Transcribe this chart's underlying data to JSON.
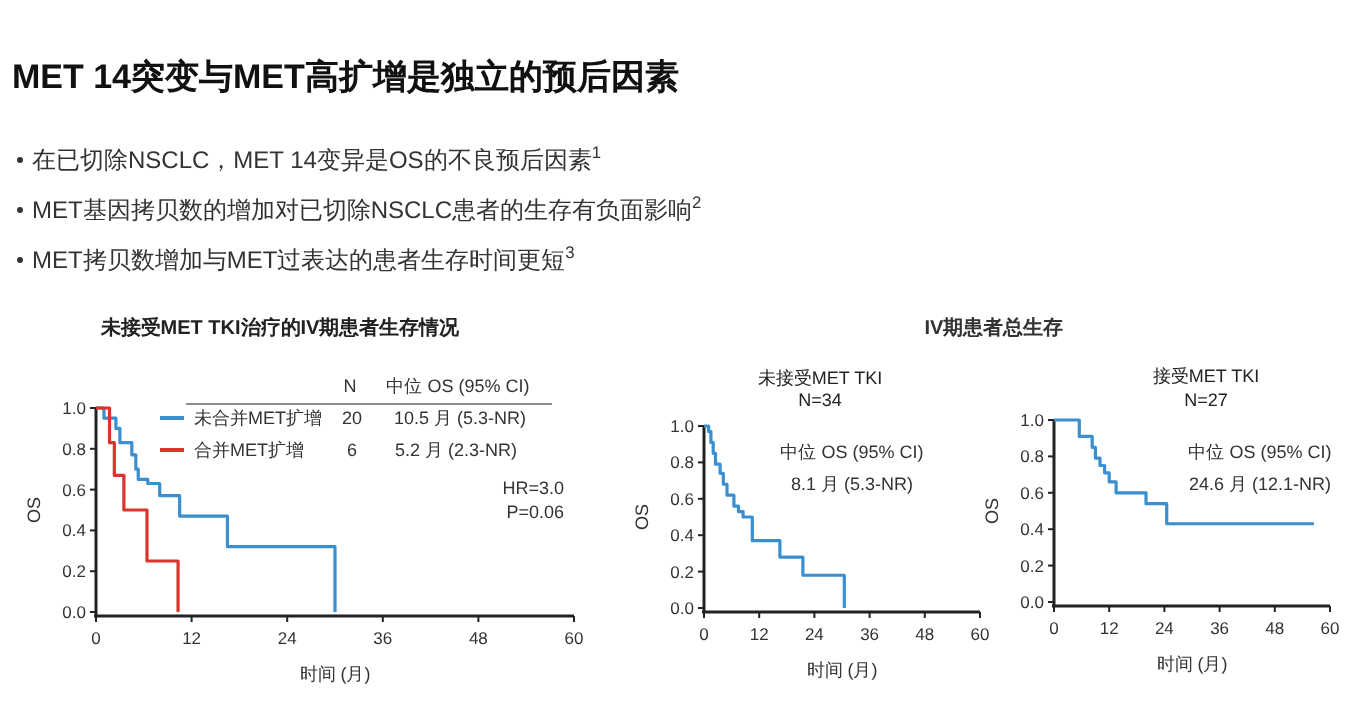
{
  "chart_data": [
    {
      "type": "other",
      "title": "MET 14突变与MET高扩增是独立的预后因素",
      "annotations": [
        "在已切除NSCLC，MET 14变异是OS的不良预后因素$^{1}$",
        "MET基因拷贝数的增加对已切除NSCLC患者的生存有负面影响$^{2}$",
        "MET拷贝数增加与MET过表达的患者生存时间更短$^{3}$"
      ]
    },
    {
      "type": "step",
      "title": "未接受MET TKI治疗的IV期患者生存情况",
      "xlabel": "时间 (月)",
      "ylabel": "OS",
      "xlim": [
        0,
        60
      ],
      "ylim": [
        0,
        1
      ],
      "xticks": [
        0,
        12,
        24,
        36,
        48,
        60
      ],
      "yticks": [
        {
          "value": 0,
          "label": "0.0"
        },
        {
          "value": 0.2,
          "label": "0.2"
        },
        {
          "value": 0.4,
          "label": "0.4"
        },
        {
          "value": 0.6,
          "label": "0.6"
        },
        {
          "value": 0.8,
          "label": "0.8"
        },
        {
          "value": 1,
          "label": "1.0"
        }
      ],
      "legend": "top",
      "grid": false,
      "series": [
        {
          "name": "未合并MET扩增",
          "color": "#3a8fd0",
          "x": [
            0,
            1,
            2.5,
            3,
            4.5,
            5,
            5.3,
            6.5,
            8,
            10.5,
            16.5,
            30
          ],
          "values": [
            1,
            0.95,
            0.9,
            0.83,
            0.77,
            0.7,
            0.65,
            0.63,
            0.57,
            0.47,
            0.32,
            0
          ]
        },
        {
          "name": "合并MET扩增",
          "color": "#d9352b",
          "x": [
            0,
            1.7,
            2.3,
            3.5,
            6.4,
            10.3
          ],
          "values": [
            1,
            0.83,
            0.67,
            0.5,
            0.25,
            0
          ]
        }
      ],
      "annotations": [
        "N",
        "中位 OS (95% CI)",
        "20",
        "10.5 月 (5.3-NR)",
        "6",
        "5.2 月 (2.3-NR)",
        "HR=3.0",
        "P=0.06"
      ]
    },
    {
      "type": "step",
      "title": "未接受MET TKI",
      "subtitle": "N=34",
      "xlabel": "时间 (月)",
      "ylabel": "OS",
      "xlim": [
        0,
        60
      ],
      "ylim": [
        0,
        1
      ],
      "xticks": [
        0,
        12,
        24,
        36,
        48,
        60
      ],
      "yticks": [
        {
          "value": 0,
          "label": "0.0"
        },
        {
          "value": 0.2,
          "label": "0.2"
        },
        {
          "value": 0.4,
          "label": "0.4"
        },
        {
          "value": 0.6,
          "label": "0.6"
        },
        {
          "value": 0.8,
          "label": "0.8"
        },
        {
          "value": 1,
          "label": "1.0"
        }
      ],
      "grid": false,
      "series": [
        {
          "color": "#3a8fd0",
          "x": [
            0,
            1,
            1.5,
            2,
            2.5,
            3.5,
            4.2,
            5,
            6.5,
            7.5,
            8.5,
            10.5,
            16.5,
            21.5,
            30.5
          ],
          "values": [
            1,
            0.97,
            0.91,
            0.85,
            0.79,
            0.74,
            0.68,
            0.62,
            0.56,
            0.53,
            0.5,
            0.37,
            0.28,
            0.18,
            0
          ]
        }
      ],
      "annotations": [
        "IV期患者总生存",
        "中位 OS (95% CI)",
        "8.1 月 (5.3-NR)"
      ]
    },
    {
      "type": "step",
      "title": "接受MET TKI",
      "subtitle": "N=27",
      "xlabel": "时间 (月)",
      "ylabel": "OS",
      "xlim": [
        0,
        60
      ],
      "ylim": [
        0,
        1
      ],
      "xticks": [
        0,
        12,
        24,
        36,
        48,
        60
      ],
      "yticks": [
        {
          "value": 0,
          "label": "0.0"
        },
        {
          "value": 0.2,
          "label": "0.2"
        },
        {
          "value": 0.4,
          "label": "0.4"
        },
        {
          "value": 0.6,
          "label": "0.6"
        },
        {
          "value": 0.8,
          "label": "0.8"
        },
        {
          "value": 1,
          "label": "1.0"
        }
      ],
      "grid": false,
      "series": [
        {
          "color": "#3a8fd0",
          "x": [
            0,
            5.5,
            8.3,
            9,
            10,
            11,
            12,
            13.5,
            20,
            24.5,
            56.5
          ],
          "values": [
            1,
            0.91,
            0.85,
            0.79,
            0.75,
            0.71,
            0.66,
            0.6,
            0.54,
            0.43,
            0.43
          ]
        }
      ],
      "annotations": [
        "中位 OS (95% CI)",
        "24.6 月 (12.1-NR)"
      ]
    }
  ]
}
